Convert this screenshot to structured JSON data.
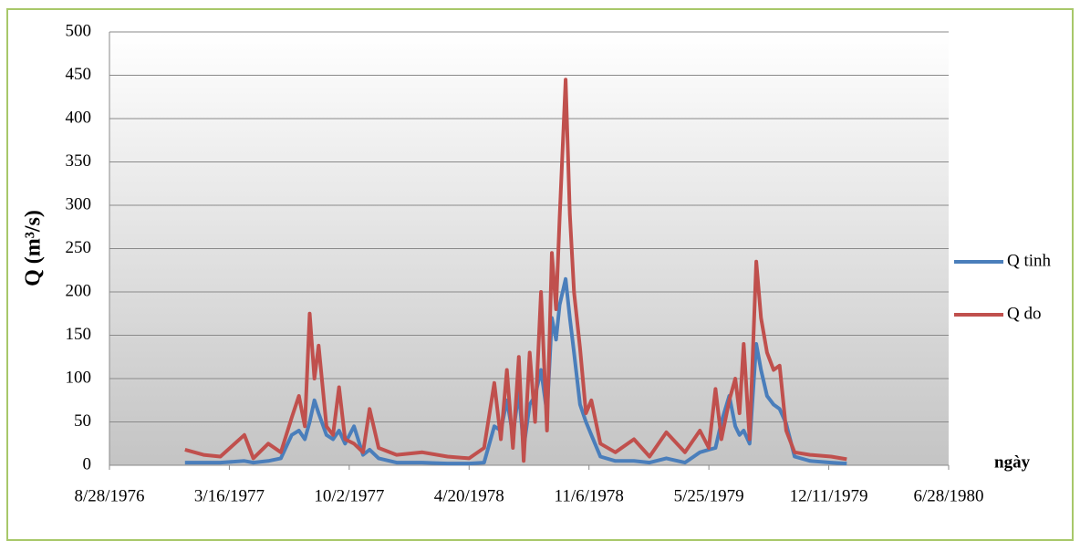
{
  "chart_data": {
    "type": "line",
    "ylabel": "Q (m³/s)",
    "xlabel": "ngày",
    "x": [
      "1977-01-01",
      "1977-02-01",
      "1977-03-01",
      "1977-04-10",
      "1977-04-25",
      "1977-05-20",
      "1977-06-10",
      "1977-06-28",
      "1977-07-10",
      "1977-07-20",
      "1977-07-28",
      "1977-08-05",
      "1977-08-12",
      "1977-08-25",
      "1977-09-05",
      "1977-09-15",
      "1977-09-25",
      "1977-10-10",
      "1977-10-25",
      "1977-11-05",
      "1977-11-20",
      "1977-12-20",
      "1978-02-01",
      "1978-03-15",
      "1978-04-20",
      "1978-05-15",
      "1978-06-01",
      "1978-06-12",
      "1978-06-22",
      "1978-07-02",
      "1978-07-12",
      "1978-07-20",
      "1978-07-30",
      "1978-08-08",
      "1978-08-18",
      "1978-08-28",
      "1978-09-05",
      "1978-09-12",
      "1978-09-18",
      "1978-09-28",
      "1978-10-05",
      "1978-10-12",
      "1978-10-22",
      "1978-11-01",
      "1978-11-10",
      "1978-11-25",
      "1978-12-20",
      "1979-01-20",
      "1979-02-15",
      "1979-03-15",
      "1979-04-15",
      "1979-05-10",
      "1979-05-25",
      "1979-06-05",
      "1979-06-15",
      "1979-06-28",
      "1979-07-08",
      "1979-07-15",
      "1979-07-22",
      "1979-08-01",
      "1979-08-12",
      "1979-08-20",
      "1979-08-30",
      "1979-09-10",
      "1979-09-20",
      "1979-10-01",
      "1979-10-15",
      "1979-11-10",
      "1979-12-15",
      "1980-01-10"
    ],
    "series": [
      {
        "name": "Q tinh",
        "color": "#4a7ebb",
        "values": [
          3,
          3,
          3,
          5,
          3,
          5,
          8,
          35,
          40,
          30,
          50,
          75,
          60,
          35,
          30,
          40,
          25,
          45,
          12,
          18,
          8,
          3,
          3,
          2,
          2,
          3,
          45,
          40,
          75,
          35,
          85,
          20,
          70,
          80,
          110,
          60,
          170,
          145,
          185,
          215,
          170,
          130,
          70,
          50,
          35,
          10,
          5,
          5,
          3,
          8,
          3,
          15,
          18,
          20,
          50,
          80,
          45,
          35,
          40,
          25,
          140,
          110,
          80,
          70,
          65,
          48,
          10,
          5,
          3,
          2
        ]
      },
      {
        "name": "Q do",
        "color": "#c0504d",
        "values": [
          18,
          12,
          10,
          35,
          8,
          25,
          15,
          55,
          80,
          45,
          175,
          100,
          138,
          45,
          35,
          90,
          30,
          25,
          15,
          65,
          20,
          12,
          15,
          10,
          8,
          20,
          95,
          30,
          110,
          20,
          125,
          5,
          130,
          50,
          200,
          40,
          245,
          180,
          285,
          445,
          290,
          200,
          135,
          60,
          75,
          25,
          15,
          30,
          10,
          38,
          15,
          40,
          20,
          88,
          30,
          75,
          100,
          60,
          140,
          30,
          235,
          170,
          130,
          110,
          115,
          40,
          15,
          12,
          10,
          7
        ]
      }
    ],
    "xlim": [
      "1976-08-28",
      "1980-06-28"
    ],
    "xticks": [
      {
        "value": "1976-08-28",
        "label": "8/28/1976"
      },
      {
        "value": "1977-03-16",
        "label": "3/16/1977"
      },
      {
        "value": "1977-10-02",
        "label": "10/2/1977"
      },
      {
        "value": "1978-04-20",
        "label": "4/20/1978"
      },
      {
        "value": "1978-11-06",
        "label": "11/6/1978"
      },
      {
        "value": "1979-05-25",
        "label": "5/25/1979"
      },
      {
        "value": "1979-12-11",
        "label": "12/11/1979"
      },
      {
        "value": "1980-06-28",
        "label": "6/28/1980"
      }
    ],
    "ylim": [
      0,
      500
    ],
    "yticks": [
      0,
      50,
      100,
      150,
      200,
      250,
      300,
      350,
      400,
      450,
      500
    ],
    "grid": true,
    "legend": "right"
  }
}
